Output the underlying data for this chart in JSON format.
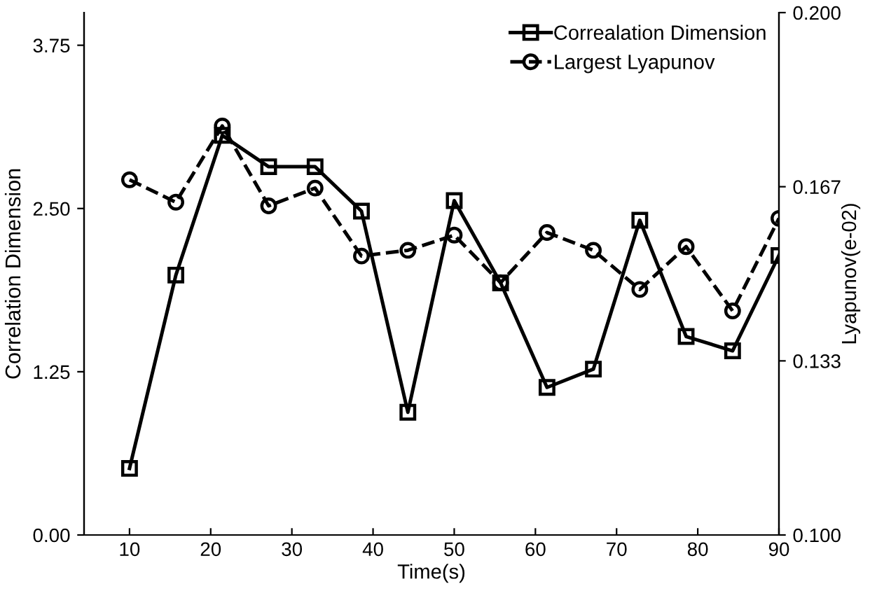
{
  "chart_data": {
    "type": "line",
    "xlabel": "Time(s)",
    "ylabel": "Correlation Dimension",
    "y2label": "Lyapunov(e-02)",
    "x": [
      10,
      15.71,
      21.43,
      27.14,
      32.86,
      38.57,
      44.29,
      50,
      55.71,
      61.43,
      67.14,
      72.86,
      78.57,
      84.29,
      90
    ],
    "series": [
      {
        "name": "Correalation Dimension",
        "color": "#000000",
        "marker": "square",
        "line_style": "solid",
        "values": [
          0.51,
          1.99,
          3.06,
          2.82,
          2.82,
          2.48,
          0.94,
          2.56,
          1.93,
          1.13,
          1.27,
          2.41,
          1.52,
          1.41,
          2.14
        ]
      },
      {
        "name": "Largest Lyapunov",
        "color": "#000000",
        "marker": "circle",
        "line_style": "dashed",
        "axis": "y2",
        "values": [
          0.168,
          0.1637,
          0.1783,
          0.163,
          0.1664,
          0.1534,
          0.1545,
          0.1574,
          0.1483,
          0.1579,
          0.1545,
          0.147,
          0.1552,
          0.1429,
          0.1606
        ]
      }
    ],
    "xlim": [
      4.4,
      90
    ],
    "xticks": [
      10,
      20,
      30,
      40,
      50,
      60,
      70,
      80,
      90
    ],
    "ylim": [
      0,
      4
    ],
    "yticks": [
      {
        "value": 0,
        "label": "0.00"
      },
      {
        "value": 1.25,
        "label": "1.25"
      },
      {
        "value": 2.5,
        "label": "2.50"
      },
      {
        "value": 3.75,
        "label": "3.75"
      }
    ],
    "y2lim": [
      0.1,
      0.2
    ],
    "y2ticks": [
      {
        "value": 0.1,
        "label": "0.100"
      },
      {
        "value": 0.13333,
        "label": "0.133"
      },
      {
        "value": 0.16667,
        "label": "0.167"
      },
      {
        "value": 0.2,
        "label": "0.200"
      }
    ],
    "grid": false,
    "legend": "top right"
  }
}
